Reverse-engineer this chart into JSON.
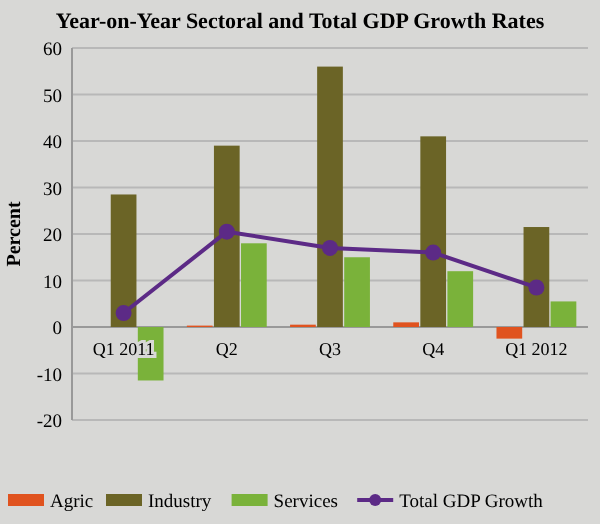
{
  "chart_data": {
    "type": "bar",
    "title": "Year-on-Year Sectoral and Total GDP Growth Rates",
    "ylabel": "Percent",
    "categories": [
      "Q1 2011",
      "Q2",
      "Q3",
      "Q4",
      "Q1 2012"
    ],
    "series": [
      {
        "name": "Agric",
        "color": "#e0531f",
        "values": [
          0,
          0.3,
          0.5,
          1,
          -2.5
        ]
      },
      {
        "name": "Industry",
        "color": "#6b6426",
        "values": [
          28.5,
          39,
          56,
          41,
          21.5
        ]
      },
      {
        "name": "Services",
        "color": "#7ab23a",
        "values": [
          -11.5,
          18,
          15,
          12,
          5.5
        ]
      },
      {
        "name": "Total GDP Growth",
        "type": "line",
        "color": "#5c2a86",
        "values": [
          3,
          20.5,
          17,
          16,
          8.5
        ]
      }
    ],
    "ylim": [
      -20,
      60
    ],
    "yticks": [
      -20,
      -10,
      0,
      10,
      20,
      30,
      40,
      50,
      60
    ],
    "grid": "y",
    "legend": "bottom",
    "marker": "circle"
  }
}
